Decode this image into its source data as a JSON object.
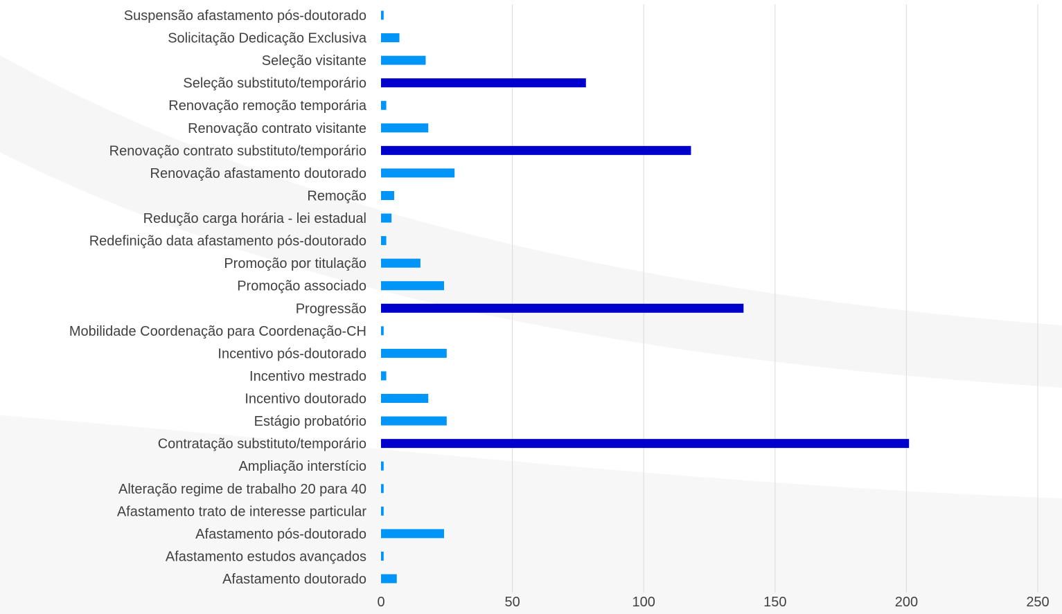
{
  "chart_data": {
    "type": "bar",
    "orientation": "horizontal",
    "title": "",
    "xlabel": "",
    "ylabel": "",
    "xlim": [
      0,
      250
    ],
    "x_ticks": [
      0,
      50,
      100,
      150,
      200,
      250
    ],
    "grid": true,
    "legend": "none",
    "colors": {
      "normal": "#0095f6",
      "highlight": "#0000cc",
      "grid": "#d9d9d9",
      "text": "#404040"
    },
    "categories": [
      "Suspensão afastamento pós-doutorado",
      "Solicitação Dedicação Exclusiva",
      "Seleção visitante",
      "Seleção substituto/temporário",
      "Renovação remoção temporária",
      "Renovação contrato visitante",
      "Renovação contrato substituto/temporário",
      "Renovação afastamento doutorado",
      "Remoção",
      "Redução carga horária - lei estadual",
      "Redefinição data afastamento pós-doutorado",
      "Promoção por titulação",
      "Promoção associado",
      "Progressão",
      "Mobilidade Coordenação para Coordenação-CH",
      "Incentivo pós-doutorado",
      "Incentivo mestrado",
      "Incentivo doutorado",
      "Estágio probatório",
      "Contratação substituto/temporário",
      "Ampliação interstício",
      "Alteração regime de trabalho 20 para 40",
      "Afastamento trato de interesse particular",
      "Afastamento pós-doutorado",
      "Afastamento estudos avançados",
      "Afastamento doutorado"
    ],
    "values": [
      1,
      7,
      17,
      78,
      2,
      18,
      118,
      28,
      5,
      4,
      2,
      15,
      24,
      138,
      1,
      25,
      2,
      18,
      25,
      201,
      1,
      1,
      1,
      24,
      1,
      6
    ],
    "highlighted": [
      false,
      false,
      false,
      true,
      false,
      false,
      true,
      false,
      false,
      false,
      false,
      false,
      false,
      true,
      false,
      false,
      false,
      false,
      false,
      true,
      false,
      false,
      false,
      false,
      false,
      false
    ]
  }
}
